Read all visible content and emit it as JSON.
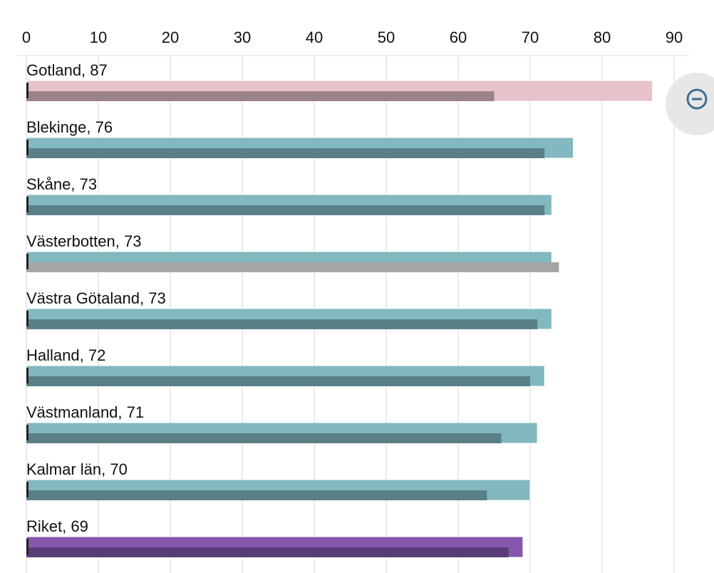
{
  "chart_data": {
    "type": "bar",
    "orientation": "horizontal",
    "categories": [
      "Gotland",
      "Blekinge",
      "Skåne",
      "Västerbotten",
      "Västra Götaland",
      "Halland",
      "Västmanland",
      "Kalmar län",
      "Riket"
    ],
    "series": [
      {
        "values": [
          87,
          76,
          73,
          73,
          73,
          72,
          71,
          70,
          69
        ]
      },
      {
        "values": [
          65,
          72,
          72,
          74,
          71,
          70,
          66,
          64,
          67
        ]
      }
    ],
    "bar_colors": [
      "#e8c2ca",
      "#82b8bf",
      "#82b8bf",
      "#82b8bf",
      "#82b8bf",
      "#82b8bf",
      "#82b8bf",
      "#82b8bf",
      "#8756ad"
    ],
    "inner_bar_colors": [
      "#9b8489",
      "#5a8087",
      "#5a8087",
      "#a5a5a5",
      "#5a8087",
      "#5a8087",
      "#5a8087",
      "#5a8087",
      "#583e77"
    ],
    "xlim": [
      0,
      90
    ],
    "xticks": [
      0,
      10,
      20,
      30,
      40,
      50,
      60,
      70,
      80,
      90
    ],
    "grid": true,
    "title": "",
    "xlabel": "",
    "ylabel": ""
  },
  "zoom_control": {
    "icon": "zoom-out-icon"
  }
}
